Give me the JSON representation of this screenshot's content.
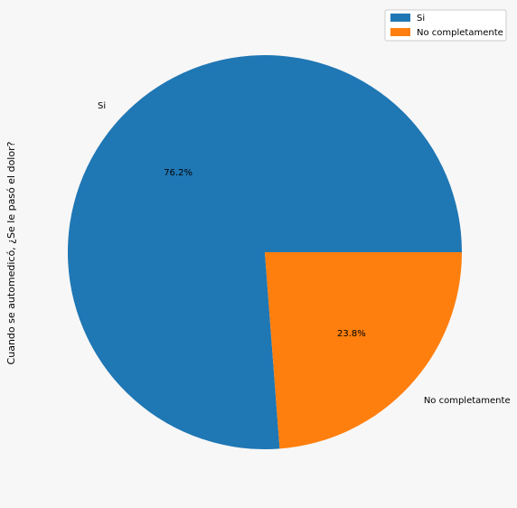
{
  "chart_data": {
    "type": "pie",
    "ylabel": "Cuando se automedicó, ¿Se le pasó el dolor?",
    "slices": [
      {
        "label": "Si",
        "value": 76.2,
        "pct_label": "76.2%",
        "color": "#1f77b4"
      },
      {
        "label": "No completamente",
        "value": 23.8,
        "pct_label": "23.8%",
        "color": "#ff7f0e"
      }
    ],
    "legend": {
      "position": "top-right",
      "entries": [
        "Si",
        "No completamente"
      ]
    },
    "start_angle": 0,
    "direction": "counterclockwise"
  },
  "colors": {
    "background": "#f7f7f7",
    "legend_bg": "#ffffff",
    "legend_border": "#cccccc",
    "text": "#000000"
  }
}
